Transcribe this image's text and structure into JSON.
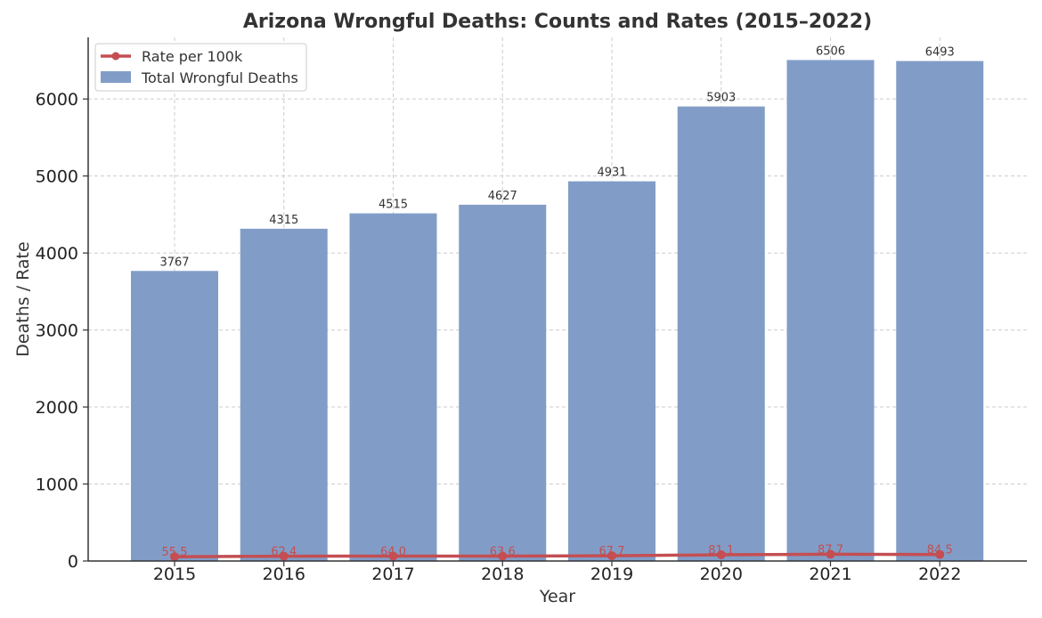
{
  "chart_data": {
    "type": "bar",
    "title": "Arizona Wrongful Deaths: Counts and Rates (2015–2022)",
    "xlabel": "Year",
    "ylabel": "Deaths / Rate",
    "categories": [
      "2015",
      "2016",
      "2017",
      "2018",
      "2019",
      "2020",
      "2021",
      "2022"
    ],
    "ylim": [
      0,
      6800
    ],
    "yticks": [
      0,
      1000,
      2000,
      3000,
      4000,
      5000,
      6000
    ],
    "grid": true,
    "legend_position": "top-left",
    "series": [
      {
        "name": "Total Wrongful Deaths",
        "kind": "bar",
        "color": "#819dc7",
        "values": [
          3767,
          4315,
          4515,
          4627,
          4931,
          5903,
          6506,
          6493
        ]
      },
      {
        "name": "Rate per 100k",
        "kind": "line",
        "color": "#c44e52",
        "values": [
          55.5,
          62.4,
          64.0,
          63.6,
          67.7,
          81.1,
          87.7,
          84.5
        ]
      }
    ]
  }
}
